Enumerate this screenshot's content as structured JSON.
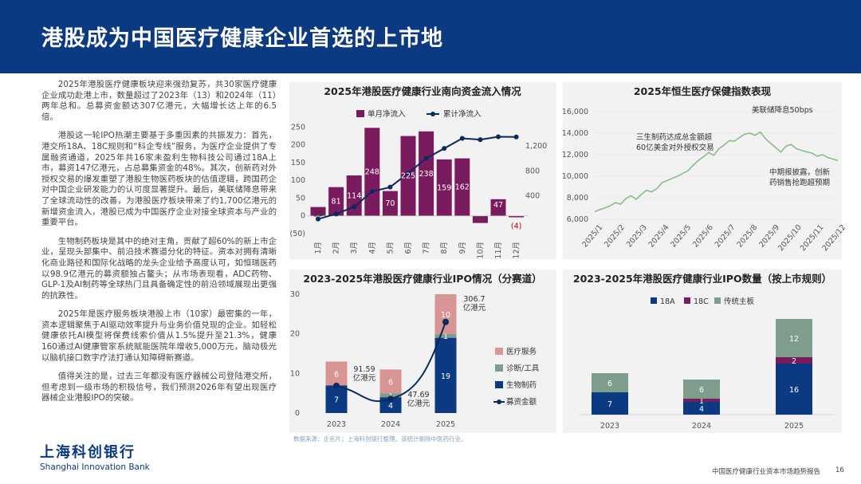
{
  "page": {
    "title": "港股成为中国医疗健康企业首选的上市地",
    "paragraphs": [
      "2025年港股医疗健康板块迎来强劲复苏，共30家医疗健康企业成功赴港上市，数量超过了2023年（13）和2024年（11）两年总和。总募资金额达307亿港元，大幅增长达上年的6.5倍。",
      "港股这一轮IPO热潮主要基于多重因素的共振发力：首先，港交所18A、18C规则和“科企专线”服务，为医疗企业提供了专属融资通道，2025年共16家未盈利生物科技公司通过18A上市，募资147亿港元，占总募集资金的48%。其次，创新药对外授权交易的爆发重塑了港股生物医药板块的估值逻辑，跨国药企对中国企业研发能力的认可度显著提升。最后，美联储降息带来了全球流动性的改善，为港股医疗板块带来了约1,700亿港元的新增资金流入，港股已成为中国医疗企业对接全球资本与产业的重要平台。",
      "生物制药板块是其中的绝对主角，贡献了超60%的新上市企业，呈现头部集中、前沿技术赛道分化的特征。资本对拥有清晰化商业路径和国际化战略的龙头企业给予高度认可，如恒瑞医药以98.9亿港元的募资额独占鳌头；从市场表现看，ADC药物、GLP-1及AI制药等全球热门且具备确定性的前沿领域展现出更强的抗跌性。",
      "2025年是医疗服务板块港股上市（10家）最密集的一年，资本逻辑聚焦于AI驱动效率提升与业务价值兑现的企业。如轻松健康依托AI模型将保费线索价值从1.5%提升至21.3%，健康160通过AI健康管家系统赋能医院年增收5,000万元，脑动极光以脑机接口数字疗法打通认知障碍新赛道。",
      "值得关注的是，过去三年都没有医疗器械公司登陆港交所，但考虑到一级市场的积极信号，我们预测2026年有望出现医疗器械企业港股IPO的突破。"
    ],
    "logo_zh": "上海科创银行",
    "logo_en": "Shanghai Innovation Bank",
    "source": "数据来源：企名片；上海科创银行整理。该统计剔除中医药行业。",
    "footer_report": "中国医疗健康行业资本市场趋势报告",
    "footer_page": "16"
  },
  "colors": {
    "navy": "#0b3a82",
    "purple": "#7a1b5e",
    "pink": "#d99594",
    "green": "#7f9d8c",
    "panel": "#f2f2f2",
    "line_dark": "#0a2a5c",
    "index_green": "#8bbd8b"
  },
  "chart_data": [
    {
      "type": "bar",
      "title": "2025年港股医疗健康行业南向资金流入情况",
      "categories": [
        "1月",
        "2月",
        "3月",
        "4月",
        "5月",
        "6月",
        "7月",
        "8月",
        "9月",
        "10月",
        "11月",
        "12月"
      ],
      "series": [
        {
          "name": "单月净流入",
          "type": "bar",
          "axis": "left",
          "values": [
            25,
            81,
            114,
            248,
            70,
            225,
            238,
            159,
            162,
            -20,
            47,
            -4
          ],
          "labels": [
            "25",
            "81",
            "114",
            "248",
            "70",
            "225",
            "238",
            "159",
            "162",
            "",
            "47",
            "(4)"
          ]
        },
        {
          "name": "累计净流入",
          "type": "line",
          "axis": "right",
          "values": [
            25,
            106,
            220,
            468,
            538,
            763,
            1001,
            1160,
            1322,
            1302,
            1349,
            1345
          ]
        }
      ],
      "left_ticks": [
        "250",
        "200",
        "150",
        "100",
        "50",
        "0",
        "(50)"
      ],
      "left_ylim": [
        -50,
        260
      ],
      "right_ticks": [
        "1,200",
        "800",
        "400"
      ],
      "right_ylim": [
        -210,
        1560
      ]
    },
    {
      "type": "line",
      "title": "2025年恒生医疗保健指数表现",
      "x_ticks": [
        "2025/1",
        "2025/2",
        "2025/3",
        "2025/4",
        "2025/5",
        "2025/6",
        "2025/7",
        "2025/8",
        "2025/9",
        "2025/10",
        "2025/11",
        "2025/12"
      ],
      "y_ticks": [
        "16,000",
        "14,000",
        "12,000",
        "10,000",
        "8,000",
        "6,000"
      ],
      "ylim": [
        6000,
        16000
      ],
      "series": [
        {
          "values": [
            6700,
            6900,
            7050,
            7250,
            7550,
            7400,
            7900,
            8200,
            7850,
            8300,
            8700,
            8550,
            8850,
            9400,
            9600,
            9800,
            10000,
            10250,
            10500,
            11000,
            11450,
            11800,
            12200,
            11950,
            12550,
            12900,
            13300,
            13250,
            13600,
            13900,
            14000,
            13800,
            14100,
            13500,
            13050,
            12650,
            12250,
            12800,
            12950,
            12550,
            12400,
            12250,
            12150,
            11850,
            12000,
            11750,
            11600,
            11450
          ]
        }
      ],
      "annotations": [
        "美联储降息50bps",
        "三生制药达成总金额超",
        "60亿美金对外授权交易",
        "中期报披露，创新",
        "药销售抢跑超预期"
      ]
    },
    {
      "type": "bar",
      "title": "2023-2025年港股医疗健康行业IPO情况（分赛道）",
      "categories": [
        "2023",
        "2024",
        "2025"
      ],
      "series": [
        {
          "name": "生物制药",
          "values": [
            7,
            4,
            19
          ]
        },
        {
          "name": "诊断/工具",
          "values": [
            0,
            1,
            1
          ]
        },
        {
          "name": "医疗服务",
          "values": [
            6,
            6,
            10
          ]
        },
        {
          "name": "募资金额",
          "type": "line",
          "values": [
            91.59,
            47.69,
            306.7
          ]
        }
      ],
      "line_labels": [
        [
          "91.59",
          "亿港元"
        ],
        [
          "47.69",
          "亿港元"
        ],
        [
          "306.7",
          "亿港元"
        ]
      ],
      "y_ticks": [
        "30",
        "20",
        "10",
        "0"
      ],
      "ylim": [
        0,
        30
      ]
    },
    {
      "type": "bar",
      "title": "2023-2025年港股医疗健康行业IPO数量（按上市规则）",
      "categories": [
        "2023",
        "2024",
        "2025"
      ],
      "series": [
        {
          "name": "18A",
          "values": [
            7,
            4,
            16
          ]
        },
        {
          "name": "18C",
          "values": [
            0,
            1,
            2
          ]
        },
        {
          "name": "传统主板",
          "values": [
            6,
            6,
            12
          ]
        }
      ],
      "ylim": [
        0,
        32
      ]
    }
  ]
}
